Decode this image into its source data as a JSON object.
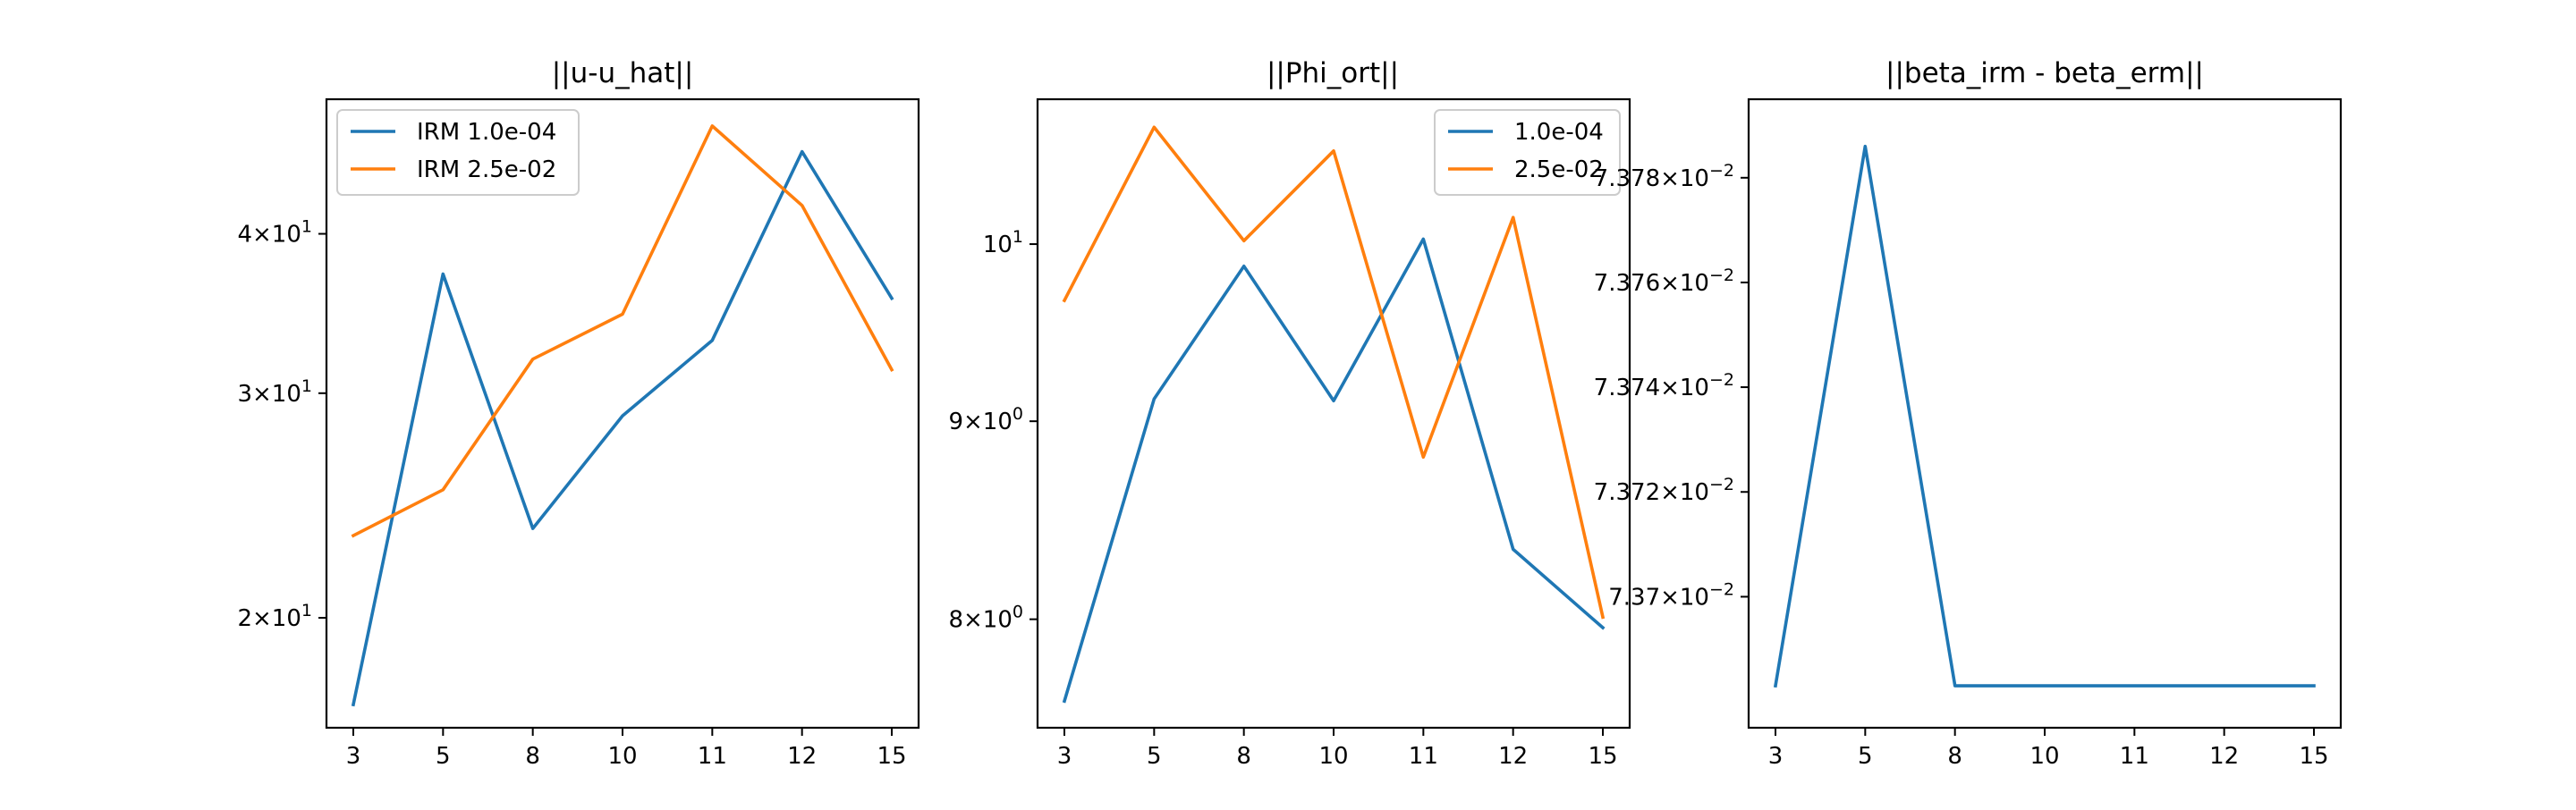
{
  "figure": {
    "background": "#ffffff"
  },
  "chart_data": [
    {
      "type": "line",
      "title": "||u-u_hat||",
      "xlabel": "",
      "ylabel": "",
      "x_categories": [
        "3",
        "5",
        "8",
        "10",
        "11",
        "12",
        "15"
      ],
      "y_scale": "log",
      "ylim": [
        16.4,
        51.0
      ],
      "y_ticks": [
        {
          "value": 20,
          "mantissa": "2",
          "base": "10",
          "exponent": "1"
        },
        {
          "value": 30,
          "mantissa": "3",
          "base": "10",
          "exponent": "1"
        },
        {
          "value": 40,
          "mantissa": "4",
          "base": "10",
          "exponent": "1"
        }
      ],
      "legend": "upper-left",
      "grid": false,
      "series": [
        {
          "name": "IRM 1.0e-04",
          "color": "#1f77b4",
          "values": [
            17.1,
            37.2,
            23.5,
            28.8,
            33.0,
            46.4,
            35.6
          ]
        },
        {
          "name": "IRM 2.5e-02",
          "color": "#ff7f0e",
          "values": [
            23.2,
            25.2,
            31.9,
            34.6,
            48.6,
            42.1,
            31.3
          ]
        }
      ]
    },
    {
      "type": "line",
      "title": "||Phi_ort||",
      "xlabel": "",
      "ylabel": "",
      "x_categories": [
        "3",
        "5",
        "8",
        "10",
        "11",
        "12",
        "15"
      ],
      "y_scale": "log",
      "ylim": [
        7.5,
        10.9
      ],
      "y_ticks": [
        {
          "value": 8,
          "mantissa": "8",
          "base": "10",
          "exponent": "0"
        },
        {
          "value": 9,
          "mantissa": "9",
          "base": "10",
          "exponent": "0"
        },
        {
          "value": 10,
          "mantissa": "",
          "base": "10",
          "exponent": "1"
        }
      ],
      "legend": "upper-right",
      "grid": false,
      "series": [
        {
          "name": "1.0e-04",
          "color": "#1f77b4",
          "values": [
            7.62,
            9.12,
            9.87,
            9.11,
            10.03,
            8.34,
            7.96
          ]
        },
        {
          "name": "2.5e-02",
          "color": "#ff7f0e",
          "values": [
            9.67,
            10.72,
            10.02,
            10.57,
            8.81,
            10.16,
            8.01
          ]
        }
      ]
    },
    {
      "type": "line",
      "title": "||beta_irm - beta_erm||",
      "xlabel": "",
      "ylabel": "",
      "x_categories": [
        "3",
        "5",
        "8",
        "10",
        "11",
        "12",
        "15"
      ],
      "y_scale": "log",
      "ylim": [
        0.073675,
        0.073795
      ],
      "y_ticks": [
        {
          "value": 0.0737,
          "mantissa": "7.37",
          "base": "10",
          "exponent": "−2"
        },
        {
          "value": 0.07372,
          "mantissa": "7.372",
          "base": "10",
          "exponent": "−2"
        },
        {
          "value": 0.07374,
          "mantissa": "7.374",
          "base": "10",
          "exponent": "−2"
        },
        {
          "value": 0.07376,
          "mantissa": "7.376",
          "base": "10",
          "exponent": "−2"
        },
        {
          "value": 0.07378,
          "mantissa": "7.378",
          "base": "10",
          "exponent": "−2"
        }
      ],
      "legend": "none",
      "grid": false,
      "series": [
        {
          "name": "",
          "color": "#1f77b4",
          "values": [
            0.073683,
            0.073786,
            0.073683,
            0.073683,
            0.073683,
            0.073683,
            0.073683
          ]
        }
      ]
    }
  ]
}
